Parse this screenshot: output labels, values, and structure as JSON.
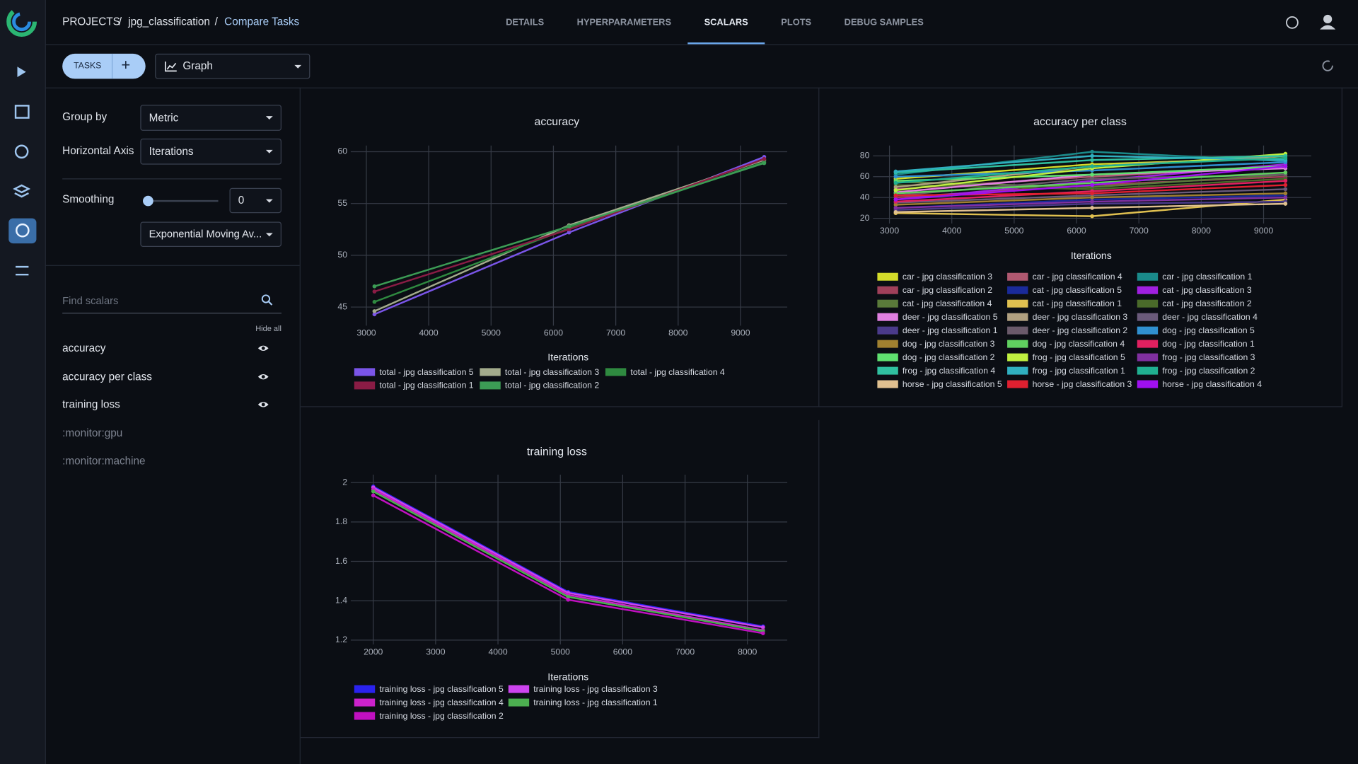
{
  "header": {
    "breadcrumbs": [
      "PROJECTS",
      "jpg_classification",
      "Compare Tasks"
    ],
    "tabs": [
      "DETAILS",
      "HYPERPARAMETERS",
      "SCALARS",
      "PLOTS",
      "DEBUG SAMPLES"
    ],
    "active_tab": 2
  },
  "toolbar": {
    "tasks_button": "TASKS",
    "view": "Graph"
  },
  "settings": {
    "group_by_label": "Group by",
    "group_by": "Metric",
    "horizontal_axis_label": "Horizontal Axis",
    "horizontal_axis": "Iterations",
    "smoothing_label": "Smoothing",
    "smoothing_value": 0,
    "smoothing_type": "Exponential Moving Av..."
  },
  "scalars": {
    "search_placeholder": "Find scalars",
    "hide_all": "Hide all",
    "items": [
      {
        "name": "accuracy",
        "visible": true
      },
      {
        "name": "accuracy per class",
        "visible": true
      },
      {
        "name": "training loss",
        "visible": true
      },
      {
        "name": ":monitor:gpu",
        "visible": false
      },
      {
        "name": ":monitor:machine",
        "visible": false
      }
    ]
  },
  "chart_data": [
    {
      "type": "line",
      "title": "accuracy",
      "x_label": "Iterations",
      "grid": true,
      "x": [
        3130,
        6250,
        9380
      ],
      "xlim": [
        2750,
        9750
      ],
      "xticks": [
        3000,
        4000,
        5000,
        6000,
        7000,
        8000,
        9000
      ],
      "ylim": [
        43.2,
        60.6
      ],
      "yticks": [
        45,
        50,
        55,
        60
      ],
      "series": [
        {
          "name": "total - jpg classification 5",
          "color": "#7a55e8",
          "values": [
            44.3,
            52.2,
            59.5
          ]
        },
        {
          "name": "total - jpg classification 3",
          "color": "#a3ab8c",
          "values": [
            44.6,
            52.9,
            59.2
          ]
        },
        {
          "name": "total - jpg classification 4",
          "color": "#2f8a40",
          "values": [
            45.5,
            52.6,
            59.0
          ]
        },
        {
          "name": "total - jpg classification 1",
          "color": "#8a1c45",
          "values": [
            46.5,
            52.5,
            59.3
          ]
        },
        {
          "name": "total - jpg classification 2",
          "color": "#3c9c55",
          "values": [
            47.0,
            52.8,
            58.9
          ]
        }
      ]
    },
    {
      "type": "line",
      "title": "accuracy per class",
      "x_label": "Iterations",
      "grid": true,
      "x": [
        3100,
        6250,
        9350
      ],
      "xlim": [
        2736,
        9764
      ],
      "xticks": [
        3000,
        4000,
        5000,
        6000,
        7000,
        8000,
        9000
      ],
      "ylim": [
        15,
        90
      ],
      "yticks": [
        20,
        40,
        60,
        80
      ],
      "series": [
        {
          "name": "car - jpg classification 3",
          "color": "#d4dc2a",
          "values": [
            58,
            72,
            78
          ]
        },
        {
          "name": "car - jpg classification 4",
          "color": "#b05870",
          "values": [
            48,
            60,
            70
          ]
        },
        {
          "name": "car - jpg classification 1",
          "color": "#1a8a8a",
          "values": [
            62,
            84,
            75
          ]
        },
        {
          "name": "car - jpg classification 2",
          "color": "#a0405a",
          "values": [
            40,
            52,
            60
          ]
        },
        {
          "name": "cat - jpg classification 5",
          "color": "#1a2a9a",
          "values": [
            30,
            38,
            42
          ]
        },
        {
          "name": "cat - jpg classification 3",
          "color": "#a020e0",
          "values": [
            38,
            56,
            72
          ]
        },
        {
          "name": "cat - jpg classification 4",
          "color": "#5a7a3a",
          "values": [
            55,
            50,
            62
          ]
        },
        {
          "name": "cat - jpg classification 1",
          "color": "#e0c050",
          "values": [
            25,
            22,
            38
          ]
        },
        {
          "name": "cat - jpg classification 2",
          "color": "#4a6a2a",
          "values": [
            52,
            48,
            58
          ]
        },
        {
          "name": "deer - jpg classification 5",
          "color": "#e080e0",
          "values": [
            45,
            62,
            68
          ]
        },
        {
          "name": "deer - jpg classification 3",
          "color": "#b0a080",
          "values": [
            50,
            70,
            80
          ]
        },
        {
          "name": "deer - jpg classification 4",
          "color": "#6a5a7a",
          "values": [
            35,
            42,
            48
          ]
        },
        {
          "name": "deer - jpg classification 1",
          "color": "#4a3a8a",
          "values": [
            28,
            34,
            36
          ]
        },
        {
          "name": "deer - jpg classification 2",
          "color": "#6a5a6a",
          "values": [
            42,
            58,
            62
          ]
        },
        {
          "name": "dog - jpg classification 5",
          "color": "#3090d0",
          "values": [
            60,
            66,
            74
          ]
        },
        {
          "name": "dog - jpg classification 3",
          "color": "#a08030",
          "values": [
            33,
            40,
            44
          ]
        },
        {
          "name": "dog - jpg classification 4",
          "color": "#60d060",
          "values": [
            44,
            54,
            64
          ]
        },
        {
          "name": "dog - jpg classification 1",
          "color": "#e02060",
          "values": [
            36,
            46,
            56
          ]
        },
        {
          "name": "dog - jpg classification 2",
          "color": "#60e070",
          "values": [
            56,
            62,
            70
          ]
        },
        {
          "name": "frog - jpg classification 5",
          "color": "#c0f040",
          "values": [
            47,
            68,
            82
          ]
        },
        {
          "name": "frog - jpg classification 3",
          "color": "#8030a0",
          "values": [
            30,
            36,
            40
          ]
        },
        {
          "name": "frog - jpg classification 4",
          "color": "#30c0a0",
          "values": [
            64,
            76,
            80
          ]
        },
        {
          "name": "frog - jpg classification 1",
          "color": "#30b0c0",
          "values": [
            65,
            80,
            76
          ]
        },
        {
          "name": "frog - jpg classification 2",
          "color": "#20b090",
          "values": [
            54,
            70,
            78
          ]
        },
        {
          "name": "horse - jpg classification 5",
          "color": "#e0c090",
          "values": [
            26,
            30,
            34
          ]
        },
        {
          "name": "horse - jpg classification 3",
          "color": "#e02030",
          "values": [
            42,
            44,
            52
          ]
        },
        {
          "name": "horse - jpg classification 4",
          "color": "#a010f0",
          "values": [
            38,
            52,
            70
          ]
        }
      ]
    },
    {
      "type": "line",
      "title": "training loss",
      "x_label": "Iterations",
      "grid": true,
      "x": [
        2000,
        5125,
        8250
      ],
      "xlim": [
        1639,
        8639
      ],
      "xticks": [
        2000,
        3000,
        4000,
        5000,
        6000,
        7000,
        8000
      ],
      "ylim": [
        1.178,
        2.04
      ],
      "yticks": [
        1.2,
        1.4,
        1.6,
        1.8,
        2
      ],
      "series": [
        {
          "name": "training loss - jpg classification 5",
          "color": "#2a22ee",
          "values": [
            1.98,
            1.445,
            1.27
          ]
        },
        {
          "name": "training loss - jpg classification 3",
          "color": "#cc44ee",
          "values": [
            1.975,
            1.44,
            1.265
          ]
        },
        {
          "name": "training loss - jpg classification 4",
          "color": "#cc22cc",
          "values": [
            1.965,
            1.43,
            1.25
          ]
        },
        {
          "name": "training loss - jpg classification 1",
          "color": "#4caf50",
          "values": [
            1.955,
            1.42,
            1.245
          ]
        },
        {
          "name": "training loss - jpg classification 2",
          "color": "#c010c0",
          "values": [
            1.935,
            1.405,
            1.235
          ]
        }
      ]
    }
  ]
}
